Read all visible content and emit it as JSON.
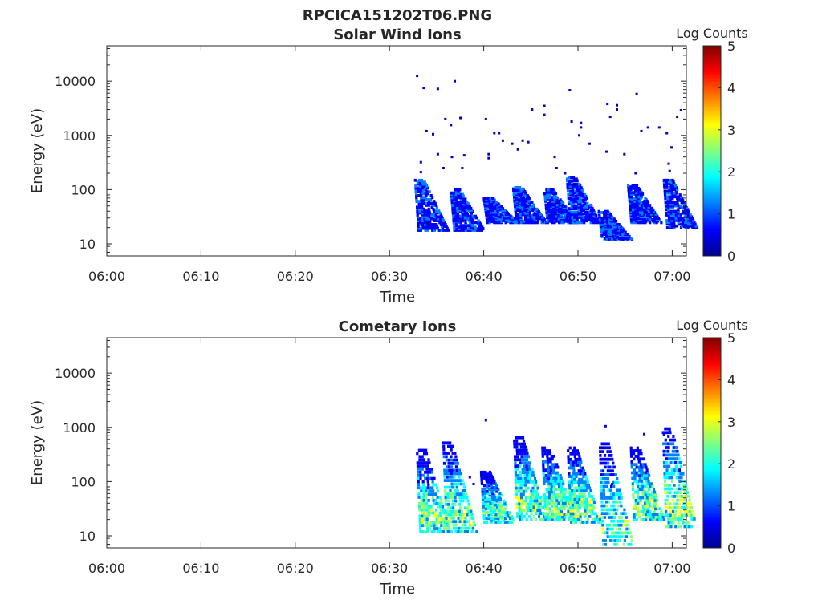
{
  "figure": {
    "title": "RPCICA151202T06.PNG",
    "colormap": [
      "#00008f",
      "#0000ff",
      "#0080ff",
      "#00ffff",
      "#80ff80",
      "#ffff00",
      "#ff8000",
      "#ff0000",
      "#800000"
    ]
  },
  "chart_data": [
    {
      "type": "heatmap",
      "title": "Solar Wind Ions",
      "xlabel": "Time",
      "ylabel": "Energy (eV)",
      "x_ticks": [
        "06:00",
        "06:10",
        "06:20",
        "06:30",
        "06:40",
        "06:50",
        "07:00"
      ],
      "x_tick_minutes": [
        0,
        10,
        20,
        30,
        40,
        50,
        60
      ],
      "xlim_minutes": [
        0,
        61.5
      ],
      "y_scale": "log",
      "ylim": [
        6,
        45000
      ],
      "y_ticks": [
        10,
        100,
        1000,
        10000
      ],
      "y_tick_labels": [
        "10",
        "100",
        "1000",
        "10000"
      ],
      "colorbar": {
        "label": "Log Counts",
        "range": [
          0,
          5
        ],
        "ticks": [
          "0",
          "1",
          "2",
          "3",
          "4",
          "5"
        ]
      },
      "bursts": [
        {
          "t_min": 33.0,
          "e_low": 18,
          "e_high": 150,
          "intensity": 0.5
        },
        {
          "t_min": 36.8,
          "e_low": 18,
          "e_high": 100,
          "intensity": 0.5
        },
        {
          "t_min": 40.3,
          "e_low": 25,
          "e_high": 70,
          "intensity": 0.5
        },
        {
          "t_min": 43.4,
          "e_low": 25,
          "e_high": 110,
          "intensity": 0.5
        },
        {
          "t_min": 46.7,
          "e_low": 25,
          "e_high": 100,
          "intensity": 0.5
        },
        {
          "t_min": 49.1,
          "e_low": 25,
          "e_high": 170,
          "intensity": 0.6
        },
        {
          "t_min": 52.5,
          "e_low": 12,
          "e_high": 40,
          "intensity": 0.4
        },
        {
          "t_min": 55.6,
          "e_low": 25,
          "e_high": 120,
          "intensity": 0.5
        },
        {
          "t_min": 59.4,
          "e_low": 20,
          "e_high": 150,
          "intensity": 0.6
        }
      ],
      "scatter": [
        [
          32.8,
          12500
        ],
        [
          33.5,
          7500
        ],
        [
          35.0,
          7200
        ],
        [
          36.8,
          10000
        ],
        [
          33.8,
          1200
        ],
        [
          34.5,
          1050
        ],
        [
          35.8,
          2000
        ],
        [
          36.4,
          1550
        ],
        [
          37.4,
          2100
        ],
        [
          40.1,
          2000
        ],
        [
          41.0,
          1100
        ],
        [
          41.5,
          1100
        ],
        [
          40.4,
          450
        ],
        [
          40.4,
          380
        ],
        [
          42.9,
          700
        ],
        [
          43.5,
          550
        ],
        [
          44.6,
          750
        ],
        [
          44.0,
          800
        ],
        [
          46.3,
          3500
        ],
        [
          46.3,
          2400
        ],
        [
          47.4,
          400
        ],
        [
          49.0,
          6800
        ],
        [
          49.2,
          1800
        ],
        [
          50.0,
          1000
        ],
        [
          50.2,
          1400
        ],
        [
          51.1,
          700
        ],
        [
          53.0,
          3800
        ],
        [
          54.0,
          3600
        ],
        [
          54.0,
          3000
        ],
        [
          52.9,
          500
        ],
        [
          53.3,
          2200
        ],
        [
          56.1,
          5800
        ],
        [
          56.6,
          1200
        ],
        [
          59.3,
          1100
        ],
        [
          59.8,
          600
        ],
        [
          60.4,
          2200
        ],
        [
          60.8,
          2900
        ],
        [
          35.0,
          450
        ],
        [
          35.6,
          250
        ],
        [
          36.5,
          400
        ],
        [
          37.6,
          250
        ],
        [
          37.8,
          430
        ],
        [
          41.9,
          800
        ],
        [
          33.2,
          320
        ],
        [
          33.2,
          210
        ],
        [
          54.8,
          450
        ],
        [
          56.0,
          200
        ],
        [
          47.6,
          250
        ],
        [
          48.5,
          200
        ],
        [
          59.5,
          300
        ],
        [
          59.6,
          220
        ],
        [
          57.3,
          1400
        ],
        [
          45.0,
          3000
        ],
        [
          50.2,
          1700
        ],
        [
          58.5,
          1400
        ]
      ]
    },
    {
      "type": "heatmap",
      "title": "Cometary Ions",
      "xlabel": "Time",
      "ylabel": "Energy (eV)",
      "x_ticks": [
        "06:00",
        "06:10",
        "06:20",
        "06:30",
        "06:40",
        "06:50",
        "07:00"
      ],
      "x_tick_minutes": [
        0,
        10,
        20,
        30,
        40,
        50,
        60
      ],
      "xlim_minutes": [
        0,
        61.5
      ],
      "y_scale": "log",
      "ylim": [
        6,
        45000
      ],
      "y_ticks": [
        10,
        100,
        1000,
        10000
      ],
      "y_tick_labels": [
        "10",
        "100",
        "1000",
        "10000"
      ],
      "colorbar": {
        "label": "Log Counts",
        "range": [
          0,
          5
        ],
        "ticks": [
          "0",
          "1",
          "2",
          "3",
          "4",
          "5"
        ]
      },
      "bursts": [
        {
          "t_min": 33.2,
          "e_low": 12,
          "e_high": 380,
          "intensity": 1.0
        },
        {
          "t_min": 36.0,
          "e_low": 12,
          "e_high": 520,
          "intensity": 1.0
        },
        {
          "t_min": 40.0,
          "e_low": 18,
          "e_high": 150,
          "intensity": 0.95
        },
        {
          "t_min": 43.5,
          "e_low": 20,
          "e_high": 650,
          "intensity": 1.0
        },
        {
          "t_min": 46.5,
          "e_low": 20,
          "e_high": 420,
          "intensity": 1.0
        },
        {
          "t_min": 49.2,
          "e_low": 18,
          "e_high": 420,
          "intensity": 1.0
        },
        {
          "t_min": 52.6,
          "e_low": 7,
          "e_high": 500,
          "intensity": 0.95
        },
        {
          "t_min": 55.9,
          "e_low": 20,
          "e_high": 420,
          "intensity": 1.0
        },
        {
          "t_min": 59.3,
          "e_low": 15,
          "e_high": 950,
          "intensity": 1.1
        }
      ],
      "scatter": [
        [
          40.1,
          1350
        ],
        [
          52.8,
          1050
        ],
        [
          56.9,
          750
        ],
        [
          59.6,
          850
        ],
        [
          59.0,
          720
        ],
        [
          43.3,
          500
        ],
        [
          44.2,
          420
        ],
        [
          38.4,
          120
        ],
        [
          38.8,
          90
        ],
        [
          53.5,
          90
        ]
      ]
    }
  ]
}
